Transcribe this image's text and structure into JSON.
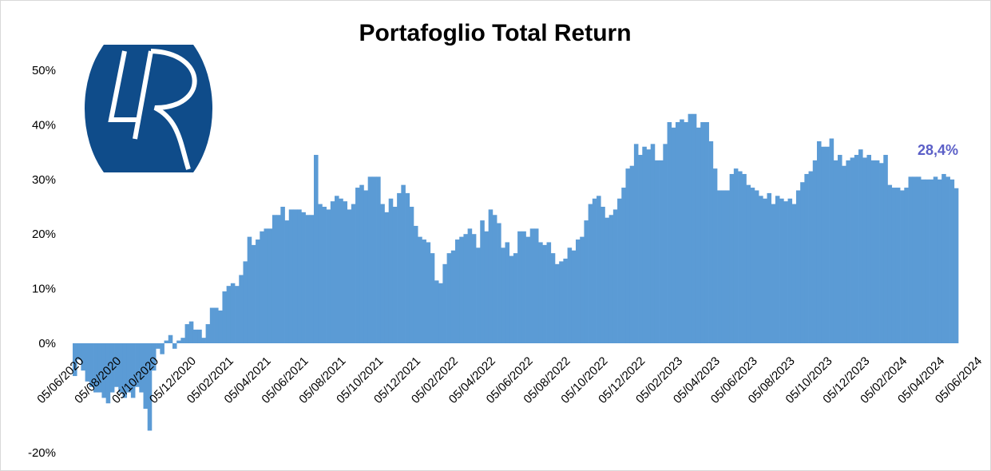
{
  "chart_data": {
    "type": "bar",
    "title": "Portafoglio Total Return",
    "xlabel": "",
    "ylabel": "",
    "ylim": [
      -20,
      50
    ],
    "y_ticks": [
      {
        "value": 50,
        "label": "50%"
      },
      {
        "value": 40,
        "label": "40%"
      },
      {
        "value": 30,
        "label": "30%"
      },
      {
        "value": 20,
        "label": "20%"
      },
      {
        "value": 10,
        "label": "10%"
      },
      {
        "value": 0,
        "label": "0%"
      },
      {
        "value": -20,
        "label": "-20%"
      }
    ],
    "x_tick_labels": [
      "05/06/2020",
      "05/08/2020",
      "05/10/2020",
      "05/12/2020",
      "05/02/2021",
      "05/04/2021",
      "05/06/2021",
      "05/08/2021",
      "05/10/2021",
      "05/12/2021",
      "05/02/2022",
      "05/04/2022",
      "05/06/2022",
      "05/08/2022",
      "05/10/2022",
      "05/12/2022",
      "05/02/2023",
      "05/04/2023",
      "05/06/2023",
      "05/08/2023",
      "05/10/2023",
      "05/12/2023",
      "05/02/2024",
      "05/04/2024",
      "05/06/2024"
    ],
    "x_tick_period": 9,
    "values": [
      -6,
      -3,
      -5,
      -7,
      -8,
      -9,
      -9,
      -10,
      -11,
      -9,
      -8,
      -9,
      -10,
      -9,
      -10,
      -8,
      -9,
      -12,
      -16,
      -5,
      -1,
      -2,
      0.5,
      1.5,
      -1,
      0.5,
      1,
      3.5,
      4,
      2.5,
      2.5,
      1,
      3.5,
      6.5,
      6.5,
      6,
      9.5,
      10.5,
      11,
      10.5,
      12.5,
      15,
      19.5,
      18,
      19,
      20.5,
      21,
      21,
      23.5,
      23.5,
      25,
      22.5,
      24.5,
      24.5,
      24.5,
      24,
      23.5,
      23.5,
      34.5,
      25.5,
      25,
      24.5,
      26,
      27,
      26.5,
      26,
      24.5,
      25.5,
      28.5,
      29,
      28,
      30.5,
      30.5,
      30.5,
      25.5,
      24,
      26.5,
      25,
      27.5,
      29,
      27.5,
      25,
      21.5,
      19.5,
      19,
      18.5,
      16.5,
      11.5,
      11,
      14.5,
      16.5,
      17,
      19,
      19.5,
      20,
      21,
      20,
      17.5,
      22.5,
      20.5,
      24.5,
      23.5,
      22,
      17.5,
      18.5,
      16,
      16.5,
      20.5,
      20.5,
      19.5,
      21,
      21,
      18.5,
      18,
      18.5,
      16.5,
      14.5,
      15,
      15.5,
      17.5,
      17,
      19,
      19.5,
      22.5,
      25.5,
      26.5,
      27,
      25,
      23,
      23.5,
      24.5,
      26.5,
      28.5,
      32,
      32.5,
      36.5,
      34.5,
      36,
      35.5,
      36.5,
      33.5,
      33.5,
      36.5,
      40.5,
      39.5,
      40.5,
      41,
      40.5,
      42,
      42,
      39.5,
      40.5,
      40.5,
      37,
      32,
      28,
      28,
      28,
      31,
      32,
      31.5,
      31,
      29,
      28.5,
      28,
      27,
      26.5,
      27.5,
      25.5,
      27,
      26.5,
      26,
      26.5,
      25.5,
      28,
      29.5,
      31,
      31.5,
      33.5,
      37,
      36,
      36,
      37.5,
      33.5,
      34.5,
      32.5,
      33.5,
      34,
      34.5,
      35.5,
      34,
      34.5,
      33.5,
      33.5,
      33,
      34.5,
      29,
      28.5,
      28.5,
      28,
      28.5,
      30.5,
      30.5,
      30.5,
      30,
      30,
      30,
      30.5,
      30,
      31,
      30.5,
      30,
      28.4
    ],
    "bar_color": "#5b9bd5",
    "last_value_label": "28,4%",
    "last_value_color": "#5b5fc7",
    "grid": false,
    "legend": "none"
  },
  "logo": {
    "text": "LR",
    "background_color": "#0f4c8a",
    "letter_color": "#ffffff"
  }
}
